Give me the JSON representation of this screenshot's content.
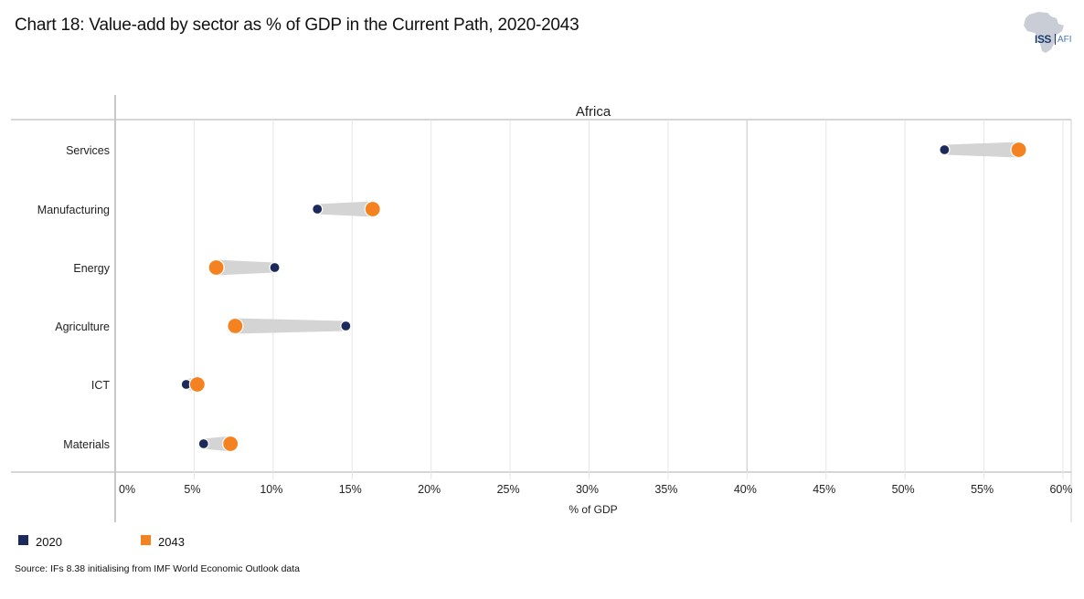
{
  "title": "Chart 18: Value-add by sector as % of GDP in the Current Path, 2020-2043",
  "logo": {
    "icon": "africa-map-icon",
    "text_left": "ISS",
    "text_right": "AFI"
  },
  "legend": [
    {
      "label": "2020",
      "color": "#1b2a5a"
    },
    {
      "label": "2043",
      "color": "#f58220"
    }
  ],
  "source": "Source: IFs 8.38 initialising from IMF World Economic Outlook data",
  "chart_data": {
    "type": "dumbbell",
    "title": "Chart 18: Value-add by sector as % of GDP in the Current Path, 2020-2043",
    "panel_label": "Africa",
    "xlabel": "% of GDP",
    "ylabel": "",
    "xlim": [
      0,
      60
    ],
    "x_ticks": [
      0,
      5,
      10,
      15,
      20,
      25,
      30,
      35,
      40,
      45,
      50,
      55,
      60
    ],
    "x_tick_labels": [
      "0%",
      "5%",
      "10%",
      "15%",
      "20%",
      "25%",
      "30%",
      "35%",
      "40%",
      "45%",
      "50%",
      "55%",
      "60%"
    ],
    "grid": true,
    "legend_position": "bottom-left",
    "categories": [
      "Services",
      "Manufacturing",
      "Energy",
      "Agriculture",
      "ICT",
      "Materials"
    ],
    "series": [
      {
        "name": "2020",
        "color": "#1b2a5a",
        "values": [
          52.5,
          12.8,
          10.1,
          14.6,
          4.5,
          5.6
        ]
      },
      {
        "name": "2043",
        "color": "#f58220",
        "values": [
          57.2,
          16.3,
          6.4,
          7.6,
          5.2,
          7.3
        ]
      }
    ],
    "connector_color": "#d4d4d4"
  }
}
